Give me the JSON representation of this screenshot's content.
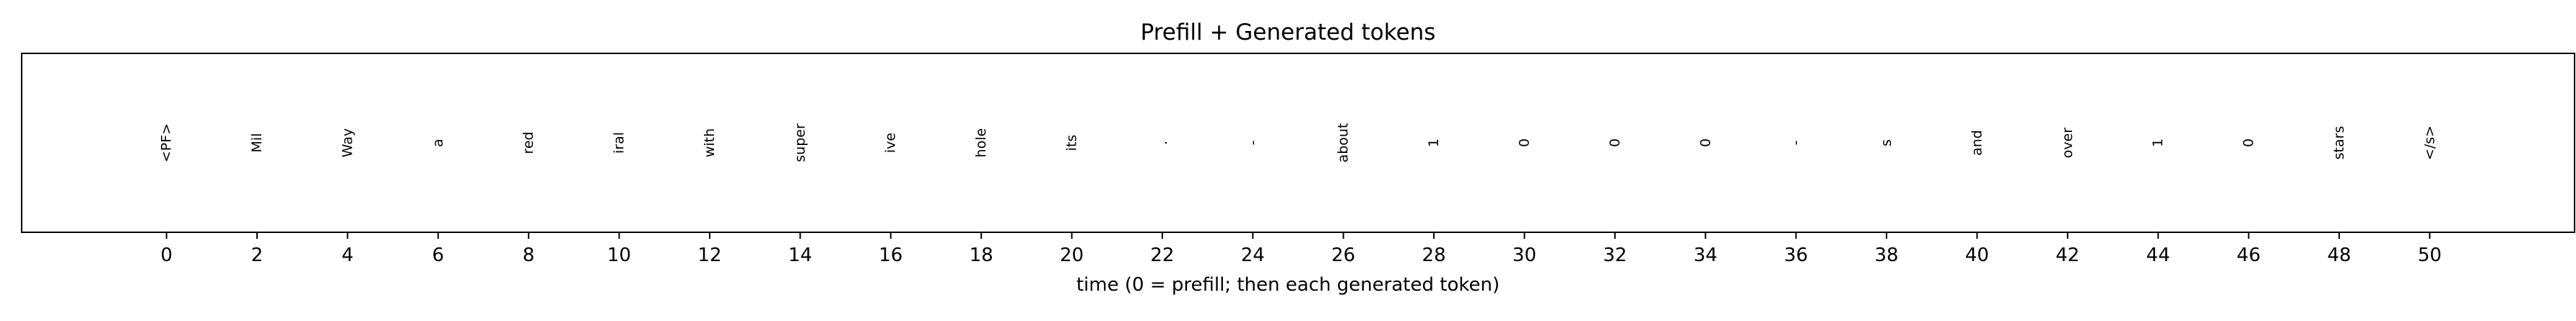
{
  "chart_data": {
    "type": "scatter",
    "title": "Prefill + Generated tokens",
    "xlabel": "time (0 = prefill; then each generated token)",
    "ylabel": "",
    "xlim": [
      -3.2,
      53.2
    ],
    "x_ticks": [
      0,
      2,
      4,
      6,
      8,
      10,
      12,
      14,
      16,
      18,
      20,
      22,
      24,
      26,
      28,
      30,
      32,
      34,
      36,
      38,
      40,
      42,
      44,
      46,
      48,
      50
    ],
    "y_ticks": [],
    "grid": false,
    "tokens": [
      {
        "x": 0,
        "text": "<PF>"
      },
      {
        "x": 2,
        "text": "Mil"
      },
      {
        "x": 4,
        "text": "Way"
      },
      {
        "x": 6,
        "text": "a"
      },
      {
        "x": 8,
        "text": "red"
      },
      {
        "x": 10,
        "text": "iral"
      },
      {
        "x": 12,
        "text": "with"
      },
      {
        "x": 14,
        "text": "super"
      },
      {
        "x": 16,
        "text": "ive"
      },
      {
        "x": 18,
        "text": "hole"
      },
      {
        "x": 20,
        "text": "its"
      },
      {
        "x": 22,
        "text": "."
      },
      {
        "x": 24,
        "text": "-"
      },
      {
        "x": 26,
        "text": "about"
      },
      {
        "x": 28,
        "text": "1"
      },
      {
        "x": 30,
        "text": "0"
      },
      {
        "x": 32,
        "text": "0"
      },
      {
        "x": 34,
        "text": "0"
      },
      {
        "x": 36,
        "text": "-"
      },
      {
        "x": 38,
        "text": "s"
      },
      {
        "x": 40,
        "text": "and"
      },
      {
        "x": 42,
        "text": "over"
      },
      {
        "x": 44,
        "text": "1"
      },
      {
        "x": 46,
        "text": "0"
      },
      {
        "x": 48,
        "text": "stars"
      },
      {
        "x": 50,
        "text": "</s>"
      }
    ]
  }
}
